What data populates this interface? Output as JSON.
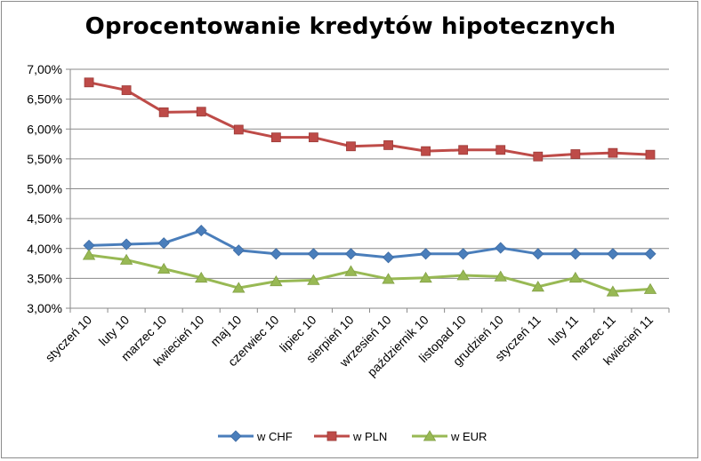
{
  "chart_data": {
    "type": "line",
    "title": "Oprocentowanie kredytów hipotecznych",
    "xlabel": "",
    "ylabel": "",
    "categories": [
      "styczeń 10",
      "luty 10",
      "marzec 10",
      "kwiecień 10",
      "maj 10",
      "czerwiec 10",
      "lipiec 10",
      "sierpień 10",
      "wrzesień 10",
      "październik 10",
      "listopad 10",
      "grudzień 10",
      "styczeń 11",
      "luty 11",
      "marzec 11",
      "kwiecień 11"
    ],
    "y_ticks": [
      "3,00%",
      "3,50%",
      "4,00%",
      "4,50%",
      "5,00%",
      "5,50%",
      "6,00%",
      "6,50%",
      "7,00%"
    ],
    "ylim": [
      3.0,
      7.0
    ],
    "grid": "horizontal",
    "legend_position": "bottom",
    "series": [
      {
        "name": "w CHF",
        "color": "#4a7ebb",
        "marker": "diamond",
        "values": [
          4.05,
          4.07,
          4.09,
          4.3,
          3.97,
          3.91,
          3.91,
          3.91,
          3.85,
          3.91,
          3.91,
          4.01,
          3.91,
          3.91,
          3.91,
          3.91
        ]
      },
      {
        "name": "w PLN",
        "color": "#be4b48",
        "marker": "square",
        "values": [
          6.78,
          6.65,
          6.28,
          6.29,
          5.99,
          5.86,
          5.86,
          5.71,
          5.73,
          5.63,
          5.65,
          5.65,
          5.54,
          5.58,
          5.6,
          5.57
        ]
      },
      {
        "name": "w EUR",
        "color": "#98b954",
        "marker": "triangle",
        "values": [
          3.89,
          3.81,
          3.66,
          3.51,
          3.34,
          3.45,
          3.47,
          3.62,
          3.49,
          3.51,
          3.55,
          3.53,
          3.36,
          3.51,
          3.28,
          3.32
        ]
      }
    ]
  }
}
